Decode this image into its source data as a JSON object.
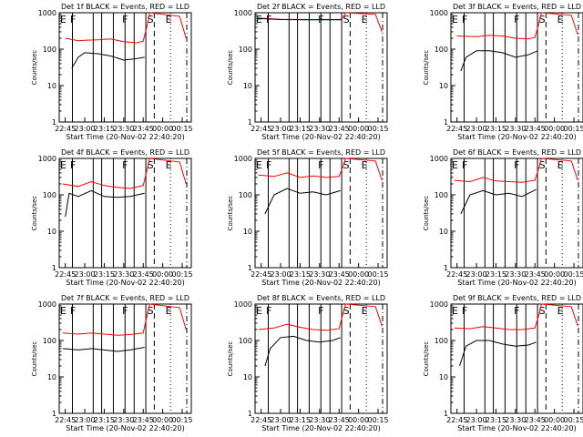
{
  "chart_data": [
    {
      "type": "line",
      "title": "Det 1f BLACK = Events, RED = LLD",
      "xlabel": "Start Time (20-Nov-02 22:40:20)",
      "ylabel": "Counts/sec",
      "yscale": "log",
      "ylim": [
        1,
        1000
      ],
      "xlim": [
        "22:40:20",
        "00:22"
      ],
      "x_ticks": [
        "22:45",
        "23:00",
        "23:15",
        "23:30",
        "23:45",
        "00:00",
        "00:15"
      ],
      "y_ticks": [
        "1",
        "10",
        "100",
        "1000"
      ],
      "markers": [
        "E",
        "F",
        "F",
        "S",
        "E"
      ],
      "series": [
        {
          "name": "Events",
          "color": "#000000",
          "x": [
            "22:50",
            "22:55",
            "23:00",
            "23:10",
            "23:20",
            "23:30",
            "23:40",
            "23:46"
          ],
          "y": [
            30,
            60,
            80,
            75,
            65,
            50,
            55,
            60
          ]
        },
        {
          "name": "LLD",
          "color": "#ff0000",
          "x": [
            "22:45",
            "22:55",
            "23:00",
            "23:10",
            "23:20",
            "23:30",
            "23:40",
            "23:45",
            "23:48",
            "23:50",
            "00:13",
            "00:18"
          ],
          "y": [
            200,
            170,
            175,
            180,
            190,
            160,
            150,
            165,
            450,
            1000,
            800,
            200
          ]
        }
      ]
    },
    {
      "type": "line",
      "title": "Det 2f BLACK = Events, RED = LLD",
      "xlabel": "Start Time (20-Nov-02 22:40:20)",
      "ylabel": "Counts/sec",
      "yscale": "log",
      "ylim": [
        1,
        1000
      ],
      "xlim": [
        "22:40:20",
        "00:22"
      ],
      "x_ticks": [
        "22:45",
        "23:00",
        "23:15",
        "23:30",
        "23:45",
        "00:00",
        "00:15"
      ],
      "y_ticks": [
        "1",
        "10",
        "100",
        "1000"
      ],
      "markers": [
        "E",
        "F",
        "F",
        "S",
        "E"
      ],
      "series": [
        {
          "name": "Events",
          "color": "#000000",
          "x": [
            "22:42",
            "23:00",
            "23:20",
            "23:40",
            "23:47"
          ],
          "y": [
            700,
            650,
            640,
            640,
            640
          ]
        },
        {
          "name": "LLD",
          "color": "#ff0000",
          "x": [
            "22:42",
            "23:00",
            "23:20",
            "23:40",
            "23:47",
            "23:50",
            "00:13",
            "00:18"
          ],
          "y": [
            720,
            660,
            650,
            650,
            650,
            1000,
            900,
            300
          ]
        }
      ]
    },
    {
      "type": "line",
      "title": "Det 3f BLACK = Events, RED = LLD",
      "xlabel": "Start Time (20-Nov-02 22:40:20)",
      "ylabel": "Counts/sec",
      "yscale": "log",
      "ylim": [
        1,
        1000
      ],
      "xlim": [
        "22:40:20",
        "00:22"
      ],
      "x_ticks": [
        "22:45",
        "23:00",
        "23:15",
        "23:30",
        "23:45",
        "00:00",
        "00:15"
      ],
      "y_ticks": [
        "1",
        "10",
        "100",
        "1000"
      ],
      "markers": [
        "E",
        "F",
        "F",
        "S",
        "E"
      ],
      "series": [
        {
          "name": "Events",
          "color": "#000000",
          "x": [
            "22:48",
            "22:52",
            "23:00",
            "23:10",
            "23:20",
            "23:30",
            "23:40",
            "23:47"
          ],
          "y": [
            25,
            60,
            90,
            90,
            80,
            60,
            70,
            90
          ]
        },
        {
          "name": "LLD",
          "color": "#ff0000",
          "x": [
            "22:45",
            "23:00",
            "23:10",
            "23:20",
            "23:30",
            "23:40",
            "23:45",
            "23:48",
            "23:50",
            "00:13",
            "00:18"
          ],
          "y": [
            230,
            220,
            240,
            230,
            200,
            190,
            210,
            500,
            1000,
            850,
            250
          ]
        }
      ]
    },
    {
      "type": "line",
      "title": "Det 4f BLACK = Events, RED = LLD",
      "xlabel": "Start Time (20-Nov-02 22:40:20)",
      "ylabel": "Counts/sec",
      "yscale": "log",
      "ylim": [
        1,
        1000
      ],
      "xlim": [
        "22:40:20",
        "00:22"
      ],
      "x_ticks": [
        "22:45",
        "23:00",
        "23:15",
        "23:30",
        "23:45",
        "00:00",
        "00:15"
      ],
      "y_ticks": [
        "1",
        "10",
        "100",
        "1000"
      ],
      "markers": [
        "E",
        "F",
        "F",
        "S",
        "E"
      ],
      "series": [
        {
          "name": "Events",
          "color": "#000000",
          "x": [
            "22:45",
            "22:48",
            "22:55",
            "23:05",
            "23:15",
            "23:25",
            "23:35",
            "23:46"
          ],
          "y": [
            25,
            110,
            90,
            130,
            90,
            85,
            90,
            110
          ]
        },
        {
          "name": "LLD",
          "color": "#ff0000",
          "x": [
            "22:43",
            "22:55",
            "23:05",
            "23:15",
            "23:25",
            "23:35",
            "23:45",
            "23:48",
            "23:50",
            "00:13",
            "00:18"
          ],
          "y": [
            200,
            170,
            230,
            180,
            160,
            150,
            180,
            500,
            1000,
            800,
            200
          ]
        }
      ]
    },
    {
      "type": "line",
      "title": "Det 5f BLACK = Events, RED = LLD",
      "xlabel": "Start Time (20-Nov-02 22:40:20)",
      "ylabel": "Counts/sec",
      "yscale": "log",
      "ylim": [
        1,
        1000
      ],
      "xlim": [
        "22:40:20",
        "00:22"
      ],
      "x_ticks": [
        "22:45",
        "23:00",
        "23:15",
        "23:30",
        "23:45",
        "00:00",
        "00:15"
      ],
      "y_ticks": [
        "1",
        "10",
        "100",
        "1000"
      ],
      "markers": [
        "E",
        "F",
        "F",
        "S",
        "E"
      ],
      "series": [
        {
          "name": "Events",
          "color": "#000000",
          "x": [
            "22:48",
            "22:55",
            "23:05",
            "23:15",
            "23:25",
            "23:35",
            "23:46"
          ],
          "y": [
            30,
            100,
            150,
            110,
            120,
            100,
            130
          ]
        },
        {
          "name": "LLD",
          "color": "#ff0000",
          "x": [
            "22:43",
            "22:55",
            "23:05",
            "23:15",
            "23:25",
            "23:35",
            "23:45",
            "23:48",
            "23:50",
            "00:13",
            "00:18"
          ],
          "y": [
            350,
            320,
            400,
            300,
            330,
            300,
            320,
            600,
            1000,
            850,
            250
          ]
        }
      ]
    },
    {
      "type": "line",
      "title": "Det 6f BLACK = Events, RED = LLD",
      "xlabel": "Start Time (20-Nov-02 22:40:20)",
      "ylabel": "Counts/sec",
      "yscale": "log",
      "ylim": [
        1,
        1000
      ],
      "xlim": [
        "22:40:20",
        "00:22"
      ],
      "x_ticks": [
        "22:45",
        "23:00",
        "23:15",
        "23:30",
        "23:45",
        "00:00",
        "00:15"
      ],
      "y_ticks": [
        "1",
        "10",
        "100",
        "1000"
      ],
      "markers": [
        "E",
        "F",
        "F",
        "S",
        "E"
      ],
      "series": [
        {
          "name": "Events",
          "color": "#000000",
          "x": [
            "22:48",
            "22:55",
            "23:05",
            "23:15",
            "23:25",
            "23:35",
            "23:46"
          ],
          "y": [
            30,
            100,
            130,
            100,
            110,
            90,
            140
          ]
        },
        {
          "name": "LLD",
          "color": "#ff0000",
          "x": [
            "22:43",
            "22:55",
            "23:05",
            "23:15",
            "23:25",
            "23:35",
            "23:45",
            "23:48",
            "23:50",
            "00:13",
            "00:18"
          ],
          "y": [
            250,
            230,
            300,
            240,
            230,
            220,
            250,
            550,
            1000,
            850,
            250
          ]
        }
      ]
    },
    {
      "type": "line",
      "title": "Det 7f BLACK = Events, RED = LLD",
      "xlabel": "Start Time (20-Nov-02 22:40:20)",
      "ylabel": "Counts/sec",
      "yscale": "log",
      "ylim": [
        1,
        1000
      ],
      "xlim": [
        "22:40:20",
        "00:22"
      ],
      "x_ticks": [
        "22:45",
        "23:00",
        "23:15",
        "23:30",
        "23:45",
        "00:00",
        "00:15"
      ],
      "y_ticks": [
        "1",
        "10",
        "100",
        "1000"
      ],
      "markers": [
        "E",
        "F",
        "F",
        "S",
        "E"
      ],
      "series": [
        {
          "name": "Events",
          "color": "#000000",
          "x": [
            "22:43",
            "22:55",
            "23:05",
            "23:15",
            "23:25",
            "23:35",
            "23:46"
          ],
          "y": [
            60,
            55,
            60,
            55,
            50,
            55,
            65
          ]
        },
        {
          "name": "LLD",
          "color": "#ff0000",
          "x": [
            "22:43",
            "22:55",
            "23:05",
            "23:15",
            "23:25",
            "23:35",
            "23:45",
            "23:48",
            "23:50",
            "00:13",
            "00:18"
          ],
          "y": [
            160,
            150,
            160,
            150,
            140,
            145,
            160,
            500,
            1000,
            800,
            200
          ]
        }
      ]
    },
    {
      "type": "line",
      "title": "Det 8f BLACK = Events, RED = LLD",
      "xlabel": "Start Time (20-Nov-02 22:40:20)",
      "ylabel": "Counts/sec",
      "yscale": "log",
      "ylim": [
        1,
        1000
      ],
      "xlim": [
        "22:40:20",
        "00:22"
      ],
      "x_ticks": [
        "22:45",
        "23:00",
        "23:15",
        "23:30",
        "23:45",
        "00:00",
        "00:15"
      ],
      "y_ticks": [
        "1",
        "10",
        "100",
        "1000"
      ],
      "markers": [
        "E",
        "F",
        "F",
        "S",
        "E"
      ],
      "series": [
        {
          "name": "Events",
          "color": "#000000",
          "x": [
            "22:48",
            "22:52",
            "23:00",
            "23:10",
            "23:20",
            "23:30",
            "23:40",
            "23:46"
          ],
          "y": [
            20,
            60,
            120,
            130,
            100,
            90,
            100,
            120
          ]
        },
        {
          "name": "LLD",
          "color": "#ff0000",
          "x": [
            "22:43",
            "22:55",
            "23:05",
            "23:15",
            "23:25",
            "23:35",
            "23:45",
            "23:48",
            "23:50",
            "00:13",
            "00:18"
          ],
          "y": [
            200,
            220,
            280,
            230,
            200,
            190,
            210,
            550,
            1000,
            850,
            250
          ]
        }
      ]
    },
    {
      "type": "line",
      "title": "Det 9f BLACK = Events, RED = LLD",
      "xlabel": "Start Time (20-Nov-02 22:40:20)",
      "ylabel": "Counts/sec",
      "yscale": "log",
      "ylim": [
        1,
        1000
      ],
      "xlim": [
        "22:40:20",
        "00:22"
      ],
      "x_ticks": [
        "22:45",
        "23:00",
        "23:15",
        "23:30",
        "23:45",
        "00:00",
        "00:15"
      ],
      "y_ticks": [
        "1",
        "10",
        "100",
        "1000"
      ],
      "markers": [
        "E",
        "F",
        "F",
        "S",
        "E"
      ],
      "series": [
        {
          "name": "Events",
          "color": "#000000",
          "x": [
            "22:47",
            "22:52",
            "23:00",
            "23:10",
            "23:20",
            "23:30",
            "23:40",
            "23:46"
          ],
          "y": [
            20,
            70,
            100,
            100,
            80,
            70,
            75,
            90
          ]
        },
        {
          "name": "LLD",
          "color": "#ff0000",
          "x": [
            "22:43",
            "22:55",
            "23:05",
            "23:15",
            "23:25",
            "23:35",
            "23:45",
            "23:48",
            "23:50",
            "00:13",
            "00:18"
          ],
          "y": [
            220,
            210,
            240,
            220,
            200,
            200,
            220,
            500,
            1000,
            850,
            250
          ]
        }
      ]
    }
  ]
}
